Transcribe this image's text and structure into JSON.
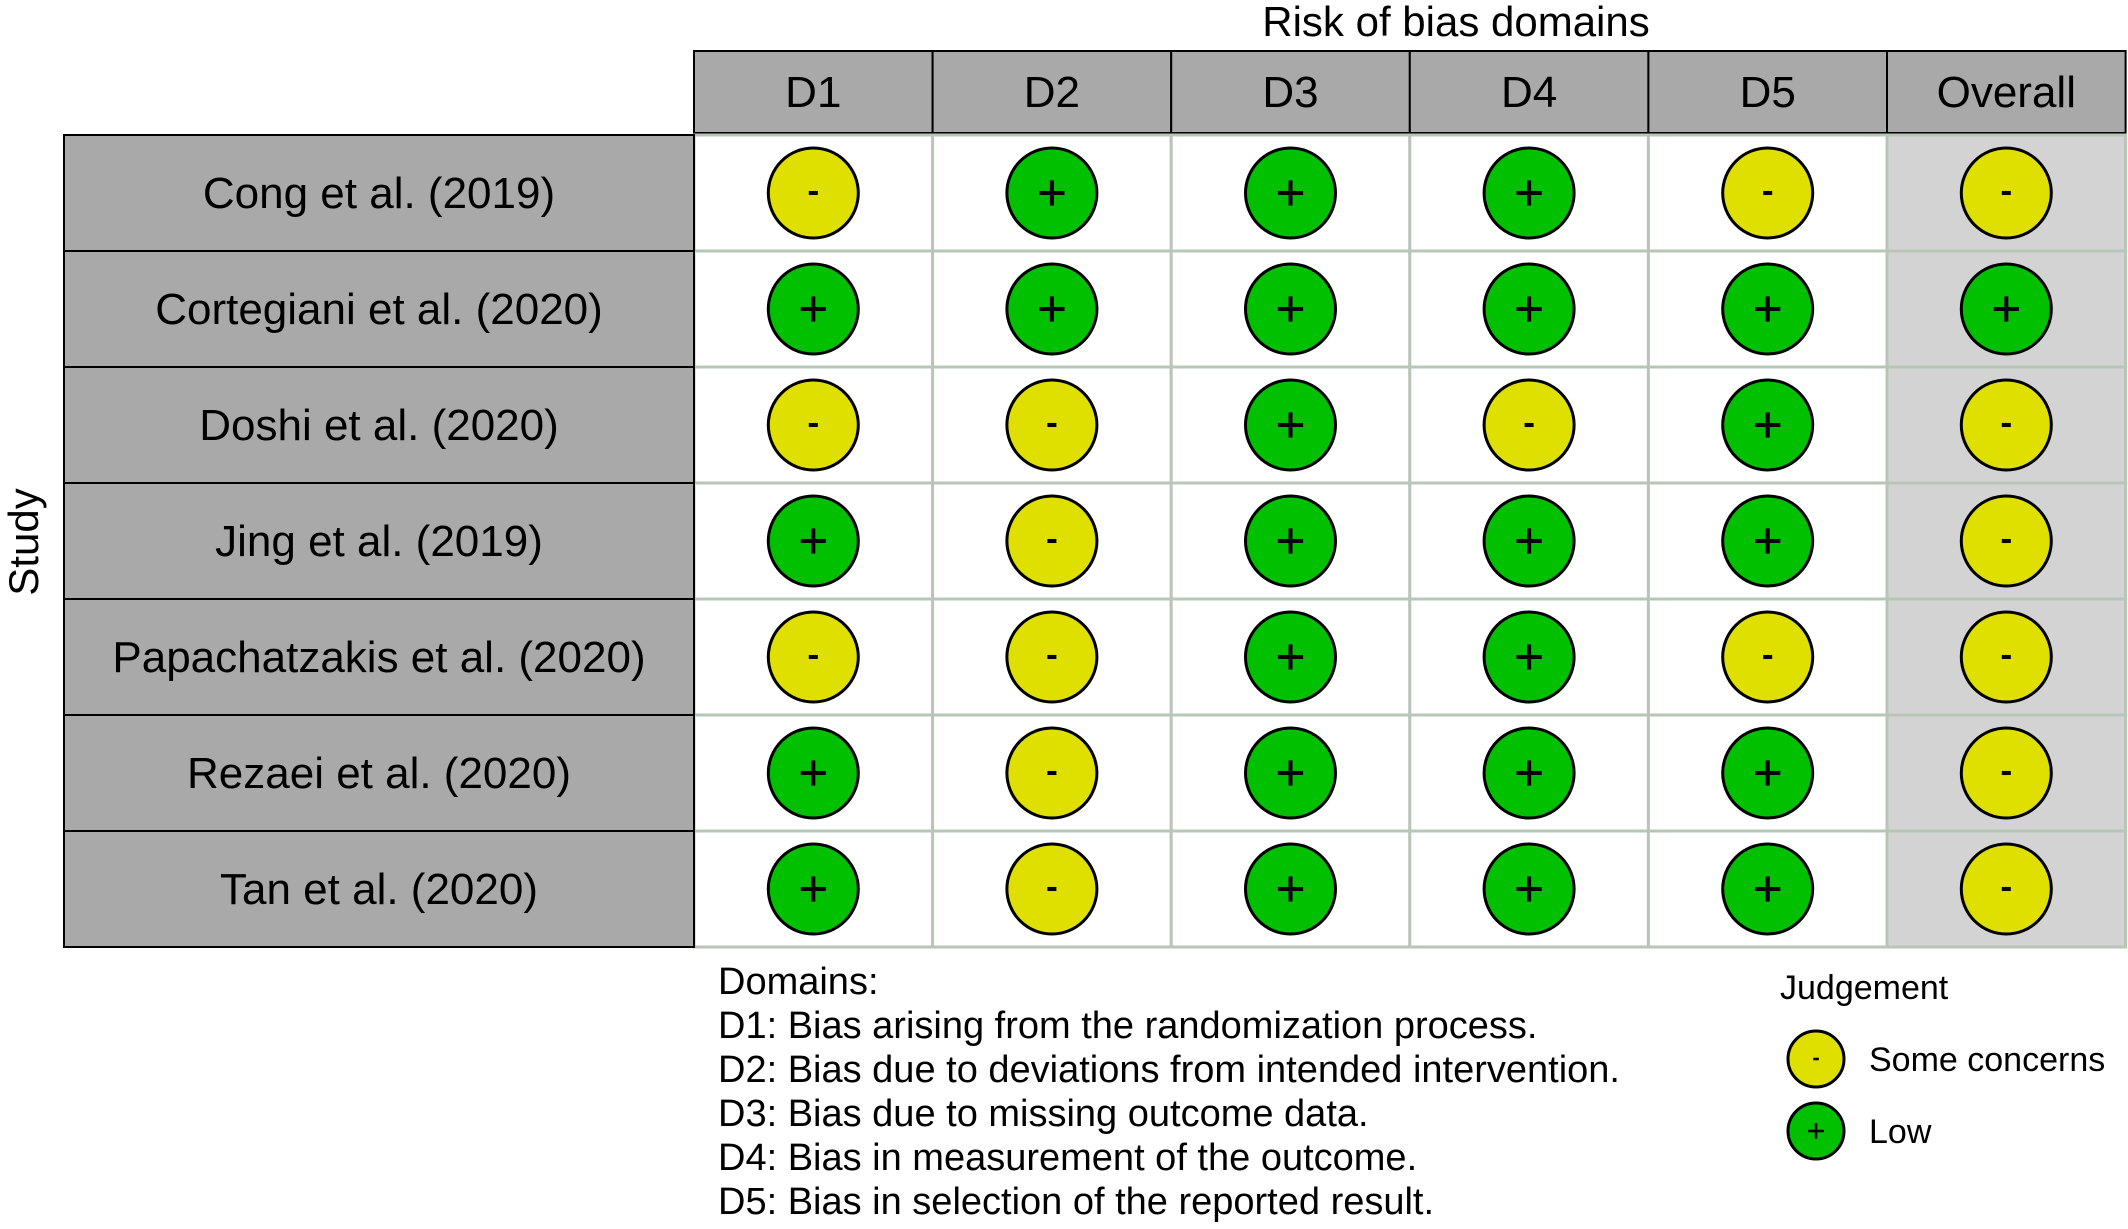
{
  "chart_data": {
    "type": "table",
    "title": "Risk of bias domains",
    "ylabel": "Study",
    "columns": [
      "D1",
      "D2",
      "D3",
      "D4",
      "D5",
      "Overall"
    ],
    "studies": [
      "Cong et al. (2019)",
      "Cortegiani et al. (2020)",
      "Doshi et al. (2020)",
      "Jing et al. (2019)",
      "Papachatzakis et al. (2020)",
      "Rezaei et al. (2020)",
      "Tan et al. (2020)"
    ],
    "judgements": [
      [
        "-",
        "+",
        "+",
        "+",
        "-",
        "-"
      ],
      [
        "+",
        "+",
        "+",
        "+",
        "+",
        "+"
      ],
      [
        "-",
        "-",
        "+",
        "-",
        "+",
        "-"
      ],
      [
        "+",
        "-",
        "+",
        "+",
        "+",
        "-"
      ],
      [
        "-",
        "-",
        "+",
        "+",
        "-",
        "-"
      ],
      [
        "+",
        "-",
        "+",
        "+",
        "+",
        "-"
      ],
      [
        "+",
        "-",
        "+",
        "+",
        "+",
        "-"
      ]
    ],
    "judgement_legend": {
      "title": "Judgement",
      "items": [
        {
          "symbol": "-",
          "label": "Some concerns",
          "color": "#e0e000"
        },
        {
          "symbol": "+",
          "label": "Low",
          "color": "#00c000"
        }
      ]
    },
    "domains_legend": {
      "heading": "Domains:",
      "items": [
        "D1: Bias arising from the randomization process.",
        "D2: Bias due to deviations from intended intervention.",
        "D3: Bias due to missing outcome data.",
        "D4: Bias in measurement of the outcome.",
        "D5: Bias in selection of the reported result."
      ]
    }
  },
  "colors": {
    "header_fill": "#a9a9a9",
    "study_fill": "#a9a9a9",
    "overall_fill": "#d3d3d3",
    "cell_fill": "#ffffff",
    "grid": "#b8c6b8",
    "border": "#000000",
    "some_concerns": "#e0e000",
    "low": "#00c000"
  }
}
